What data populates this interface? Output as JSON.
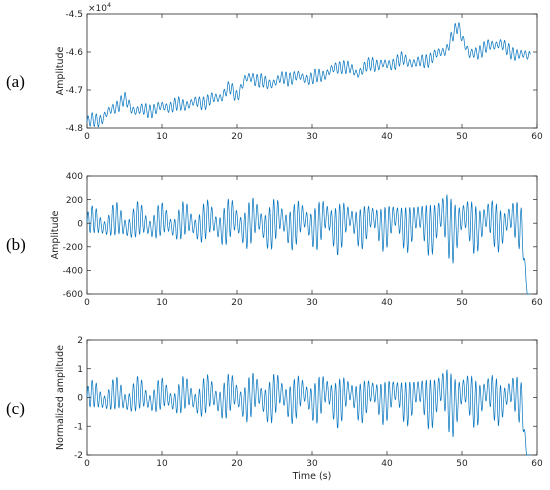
{
  "chart_data": [
    {
      "type": "line",
      "panel_label": "(a)",
      "ylabel": "Amplitude",
      "xlabel": "",
      "xlim": [
        0,
        60
      ],
      "ylim": [
        -48000,
        -45000
      ],
      "xticks": [
        "0",
        "10",
        "20",
        "30",
        "40",
        "50",
        "60"
      ],
      "yticks": [
        "-4.5",
        "-4.6",
        "-4.7",
        "-4.8"
      ],
      "y_exponent": "×10",
      "y_exponent_power": "4",
      "line_color": "#0072BD",
      "trend": {
        "x": [
          0,
          2,
          4,
          5,
          6,
          8,
          10,
          12,
          14,
          16,
          18,
          19,
          20,
          21,
          22,
          24,
          26,
          28,
          30,
          32,
          34,
          36,
          38,
          40,
          42,
          44,
          46,
          48,
          49.5,
          51,
          53,
          55,
          56,
          58,
          59.5
        ],
        "y": [
          -47850,
          -47750,
          -47400,
          -47250,
          -47500,
          -47550,
          -47450,
          -47400,
          -47350,
          -47300,
          -47150,
          -46950,
          -47150,
          -46750,
          -46650,
          -46850,
          -46700,
          -46650,
          -46700,
          -46550,
          -46350,
          -46550,
          -46300,
          -46350,
          -46200,
          -46300,
          -46150,
          -45900,
          -45300,
          -46100,
          -45900,
          -45750,
          -45950,
          -46100,
          -46050
        ]
      },
      "oscillation_amplitude": 180
    },
    {
      "type": "line",
      "panel_label": "(b)",
      "ylabel": "Amplitude",
      "xlabel": "",
      "xlim": [
        0,
        60
      ],
      "ylim": [
        -600,
        400
      ],
      "xticks": [
        "0",
        "10",
        "20",
        "30",
        "40",
        "50",
        "60"
      ],
      "yticks": [
        "400",
        "200",
        "0",
        "-200",
        "-400",
        "-600"
      ],
      "line_color": "#0072BD",
      "envelope": {
        "x": [
          0,
          5,
          10,
          15,
          20,
          25,
          30,
          33,
          35,
          40,
          45,
          48,
          50,
          55,
          57,
          58.5
        ],
        "amplitude": [
          110,
          150,
          140,
          160,
          190,
          200,
          180,
          230,
          170,
          190,
          200,
          300,
          220,
          200,
          180,
          200
        ]
      },
      "end_spike": {
        "x": 58.6,
        "y": -540
      }
    },
    {
      "type": "line",
      "panel_label": "(c)",
      "ylabel": "Normalized amplitude",
      "xlabel": "Time (s)",
      "xlim": [
        0,
        60
      ],
      "ylim": [
        -2,
        2
      ],
      "xticks": [
        "0",
        "10",
        "20",
        "30",
        "40",
        "50",
        "60"
      ],
      "yticks": [
        "2",
        "1",
        "0",
        "-1",
        "-2"
      ],
      "line_color": "#0072BD",
      "envelope": {
        "x": [
          0,
          5,
          10,
          15,
          20,
          25,
          30,
          33,
          35,
          40,
          45,
          48,
          50,
          55,
          57,
          58.5
        ],
        "amplitude": [
          0.45,
          0.6,
          0.55,
          0.65,
          0.75,
          0.8,
          0.72,
          0.9,
          0.7,
          0.75,
          0.8,
          1.2,
          0.9,
          0.8,
          0.72,
          0.8
        ]
      },
      "end_spike": {
        "x": 58.6,
        "y": -2.0
      }
    }
  ]
}
